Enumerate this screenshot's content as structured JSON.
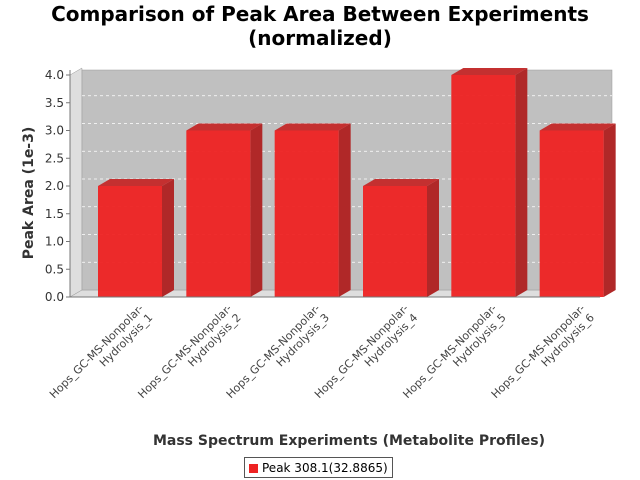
{
  "chart_data": {
    "type": "bar",
    "title_lines": [
      "Comparison of Peak Area Between Experiments",
      "(normalized)"
    ],
    "xlabel": "Mass Spectrum Experiments (Metabolite Profiles)",
    "ylabel": "Peak Area (1e-3)",
    "categories": [
      [
        "Hops_GC-MS-Nonpolar-",
        "Hydrolysis_1"
      ],
      [
        "Hops_GC-MS-Nonpolar-",
        "Hydrolysis_2"
      ],
      [
        "Hops_GC-MS-Nonpolar-",
        "Hydrolysis_3"
      ],
      [
        "Hops_GC-MS-Nonpolar-",
        "Hydrolysis_4"
      ],
      [
        "Hops_GC-MS-Nonpolar-",
        "Hydrolysis_5"
      ],
      [
        "Hops_GC-MS-Nonpolar-",
        "Hydrolysis_6"
      ]
    ],
    "series": [
      {
        "name": "Peak 308.1(32.8865)",
        "values": [
          2.0,
          3.0,
          3.0,
          2.0,
          4.0,
          3.0
        ],
        "color": "#ee2222"
      }
    ],
    "yticks": [
      "0.0",
      "0.5",
      "1.0",
      "1.5",
      "2.0",
      "2.5",
      "3.0",
      "3.5",
      "4.0"
    ],
    "ylim": [
      0,
      4.0
    ],
    "grid": true,
    "style": "3d",
    "plot_background": "#c0c0c0",
    "legend_position": "bottom"
  }
}
